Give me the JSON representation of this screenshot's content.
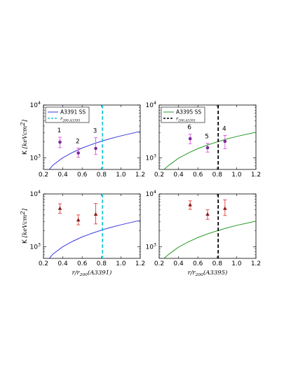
{
  "chart_data": [
    {
      "panel": "top-left",
      "type": "scatter",
      "xlim": [
        0.2,
        1.2
      ],
      "ylim": [
        600,
        10000
      ],
      "yscale": "log",
      "x_ticks": [
        "0.2",
        "0.4",
        "0.6",
        "0.8",
        "1.0",
        "1.2"
      ],
      "y_ticks": [
        "10^3",
        "10^4"
      ],
      "ylabel_main": "K",
      "ylabel_unit": "[keVcm^2]",
      "legend": {
        "placement": "top-left",
        "entries": [
          {
            "label": "A3391 SS",
            "color": "#3a3ae0",
            "style": "solid"
          },
          {
            "label": "r_200,A3395",
            "color": "#20c8d8",
            "style": "dashed"
          }
        ]
      },
      "curve": {
        "color": "#3a3ae0",
        "x": [
          0.26,
          0.3,
          0.4,
          0.5,
          0.6,
          0.7,
          0.8,
          0.9,
          1.0,
          1.1,
          1.2
        ],
        "y": [
          600,
          730,
          1000,
          1260,
          1530,
          1790,
          2060,
          2330,
          2600,
          2870,
          3150
        ]
      },
      "vline": {
        "x": 0.81,
        "color": "#20c8d8",
        "style": "dashed"
      },
      "points": {
        "color": "#7a2a9a",
        "errcolor": "#dd55dd",
        "marker": "circle",
        "x": [
          0.37,
          0.56,
          0.74
        ],
        "y": [
          1980,
          1230,
          1500
        ],
        "err": [
          [
            1550,
            2450
          ],
          [
            1020,
            1520
          ],
          [
            1150,
            2400
          ]
        ]
      },
      "point_labels": [
        "1",
        "2",
        "3"
      ]
    },
    {
      "panel": "top-right",
      "type": "scatter",
      "xlim": [
        0.2,
        1.2
      ],
      "ylim": [
        600,
        10000
      ],
      "yscale": "log",
      "x_ticks": [
        "0.2",
        "0.4",
        "0.6",
        "0.8",
        "1.0",
        "1.2"
      ],
      "y_ticks": [
        "10^3",
        "10^4"
      ],
      "legend": {
        "placement": "top-left",
        "entries": [
          {
            "label": "A3395 SS",
            "color": "#2a9a2a",
            "style": "solid"
          },
          {
            "label": "r_200,A3391",
            "color": "#000000",
            "style": "dashed"
          }
        ]
      },
      "curve": {
        "color": "#2a9a2a",
        "x": [
          0.25,
          0.3,
          0.4,
          0.5,
          0.6,
          0.7,
          0.8,
          0.9,
          1.0,
          1.1,
          1.2
        ],
        "y": [
          600,
          720,
          980,
          1230,
          1490,
          1750,
          2000,
          2270,
          2530,
          2780,
          3050
        ]
      },
      "vline": {
        "x": 0.81,
        "color": "#000000",
        "style": "dashed"
      },
      "points": {
        "color": "#7a2a9a",
        "errcolor": "#dd55dd",
        "marker": "circle",
        "x": [
          0.52,
          0.7,
          0.88
        ],
        "y": [
          2300,
          1550,
          2050
        ],
        "err": [
          [
            1850,
            2800
          ],
          [
            1280,
            1880
          ],
          [
            1480,
            2650
          ]
        ]
      },
      "point_labels": [
        "6",
        "5",
        "4"
      ]
    },
    {
      "panel": "bottom-left",
      "type": "scatter",
      "xlim": [
        0.2,
        1.2
      ],
      "ylim": [
        600,
        10000
      ],
      "yscale": "log",
      "x_ticks": [
        "0.2",
        "0.4",
        "0.6",
        "0.8",
        "1.0",
        "1.2"
      ],
      "y_ticks": [
        "10^3",
        "10^4"
      ],
      "ylabel_main": "K",
      "ylabel_unit": "[keVcm^2]",
      "xlabel": "r/r_200(A3391)",
      "curve": {
        "color": "#3a3ae0",
        "x": [
          0.26,
          0.3,
          0.4,
          0.5,
          0.6,
          0.7,
          0.8,
          0.9,
          1.0,
          1.1,
          1.2
        ],
        "y": [
          600,
          730,
          1000,
          1260,
          1530,
          1790,
          2060,
          2330,
          2600,
          2870,
          3150
        ]
      },
      "vline": {
        "x": 0.81,
        "color": "#20c8d8",
        "style": "dashed"
      },
      "points": {
        "color": "#8b1a1a",
        "errcolor": "#e04040",
        "marker": "triangle",
        "x": [
          0.37,
          0.56,
          0.74
        ],
        "y": [
          5300,
          3200,
          4100
        ],
        "err": [
          [
            4300,
            6500
          ],
          [
            2600,
            4000
          ],
          [
            2700,
            6600
          ]
        ]
      }
    },
    {
      "panel": "bottom-right",
      "type": "scatter",
      "xlim": [
        0.2,
        1.2
      ],
      "ylim": [
        600,
        10000
      ],
      "yscale": "log",
      "x_ticks": [
        "0.2",
        "0.4",
        "0.6",
        "0.8",
        "1.0",
        "1.2"
      ],
      "y_ticks": [
        "10^3",
        "10^4"
      ],
      "xlabel": "r/r_200(A3395)",
      "curve": {
        "color": "#2a9a2a",
        "x": [
          0.25,
          0.3,
          0.4,
          0.5,
          0.6,
          0.7,
          0.8,
          0.9,
          1.0,
          1.1,
          1.2
        ],
        "y": [
          600,
          720,
          980,
          1230,
          1490,
          1750,
          2000,
          2270,
          2530,
          2780,
          3050
        ]
      },
      "vline": {
        "x": 0.81,
        "color": "#000000",
        "style": "dashed"
      },
      "points": {
        "color": "#8b1a1a",
        "errcolor": "#e04040",
        "marker": "triangle",
        "x": [
          0.52,
          0.7,
          0.88
        ],
        "y": [
          6200,
          4100,
          5300
        ],
        "err": [
          [
            5100,
            7400
          ],
          [
            3300,
            5000
          ],
          [
            3900,
            7700
          ]
        ]
      }
    }
  ]
}
